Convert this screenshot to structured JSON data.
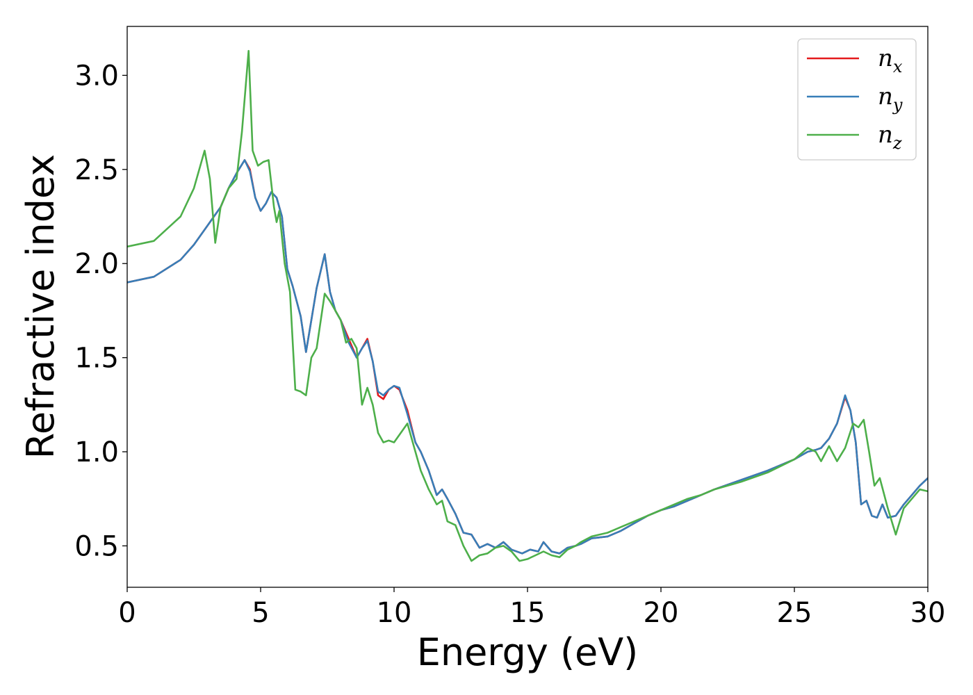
{
  "chart_data": {
    "type": "line",
    "xlabel": "Energy (eV)",
    "ylabel": "Refractive index",
    "xlim": [
      0,
      30
    ],
    "ylim": [
      0.28,
      3.26
    ],
    "xticks": [
      0,
      5,
      10,
      15,
      20,
      25,
      30
    ],
    "xtick_labels": [
      "0",
      "5",
      "10",
      "15",
      "20",
      "25",
      "30"
    ],
    "yticks": [
      0.5,
      1.0,
      1.5,
      2.0,
      2.5,
      3.0
    ],
    "ytick_labels": [
      "0.5",
      "1.0",
      "1.5",
      "2.0",
      "2.5",
      "3.0"
    ],
    "grid": false,
    "legend": "top-right",
    "series": [
      {
        "name": "n_x",
        "legend_base": "n",
        "legend_sub": "x",
        "color": "#e41a1c",
        "x": [
          0,
          1,
          2,
          2.5,
          3,
          3.5,
          3.8,
          4.1,
          4.4,
          4.6,
          4.8,
          5.0,
          5.2,
          5.4,
          5.6,
          5.8,
          6.0,
          6.2,
          6.5,
          6.7,
          6.9,
          7.1,
          7.4,
          7.6,
          7.8,
          8.0,
          8.3,
          8.6,
          8.8,
          9.0,
          9.2,
          9.4,
          9.6,
          9.8,
          10.0,
          10.2,
          10.5,
          10.8,
          11.0,
          11.3,
          11.6,
          11.8,
          12.0,
          12.3,
          12.6,
          12.9,
          13.2,
          13.5,
          13.8,
          14.1,
          14.4,
          14.8,
          15.1,
          15.4,
          15.6,
          15.9,
          16.2,
          16.5,
          16.8,
          17.0,
          17.4,
          18.0,
          18.5,
          19.0,
          19.5,
          20.0,
          20.5,
          21.0,
          21.5,
          22.0,
          23.0,
          24.0,
          25.0,
          25.5,
          25.8,
          26.0,
          26.3,
          26.6,
          26.9,
          27.1,
          27.3,
          27.5,
          27.7,
          27.9,
          28.1,
          28.3,
          28.5,
          28.8,
          29.1,
          29.4,
          29.7,
          30.0
        ],
        "y": [
          1.9,
          1.93,
          2.02,
          2.1,
          2.2,
          2.3,
          2.4,
          2.48,
          2.55,
          2.5,
          2.35,
          2.28,
          2.32,
          2.38,
          2.35,
          2.25,
          1.97,
          1.88,
          1.72,
          1.53,
          1.7,
          1.87,
          2.05,
          1.85,
          1.75,
          1.7,
          1.6,
          1.5,
          1.55,
          1.6,
          1.48,
          1.3,
          1.28,
          1.33,
          1.35,
          1.33,
          1.22,
          1.05,
          1.0,
          0.9,
          0.77,
          0.8,
          0.75,
          0.67,
          0.57,
          0.56,
          0.49,
          0.51,
          0.49,
          0.52,
          0.48,
          0.46,
          0.48,
          0.47,
          0.52,
          0.47,
          0.46,
          0.49,
          0.5,
          0.51,
          0.54,
          0.55,
          0.58,
          0.62,
          0.66,
          0.69,
          0.71,
          0.74,
          0.77,
          0.8,
          0.85,
          0.9,
          0.96,
          1.0,
          1.01,
          1.02,
          1.07,
          1.15,
          1.29,
          1.22,
          1.05,
          0.72,
          0.74,
          0.66,
          0.65,
          0.72,
          0.65,
          0.66,
          0.72,
          0.77,
          0.82,
          0.86
        ]
      },
      {
        "name": "n_y",
        "legend_base": "n",
        "legend_sub": "y",
        "color": "#377eb8",
        "x": [
          0,
          1,
          2,
          2.5,
          3,
          3.5,
          3.8,
          4.1,
          4.4,
          4.6,
          4.8,
          5.0,
          5.2,
          5.4,
          5.6,
          5.8,
          6.0,
          6.2,
          6.5,
          6.7,
          6.9,
          7.1,
          7.4,
          7.6,
          7.8,
          8.0,
          8.3,
          8.6,
          8.8,
          9.0,
          9.2,
          9.4,
          9.6,
          9.8,
          10.0,
          10.2,
          10.5,
          10.8,
          11.0,
          11.3,
          11.6,
          11.8,
          12.0,
          12.3,
          12.6,
          12.9,
          13.2,
          13.5,
          13.8,
          14.1,
          14.4,
          14.8,
          15.1,
          15.4,
          15.6,
          15.9,
          16.2,
          16.5,
          16.8,
          17.0,
          17.4,
          18.0,
          18.5,
          19.0,
          19.5,
          20.0,
          20.5,
          21.0,
          21.5,
          22.0,
          23.0,
          24.0,
          25.0,
          25.5,
          25.8,
          26.0,
          26.3,
          26.6,
          26.9,
          27.1,
          27.3,
          27.5,
          27.7,
          27.9,
          28.1,
          28.3,
          28.5,
          28.8,
          29.1,
          29.4,
          29.7,
          30.0
        ],
        "y": [
          1.9,
          1.93,
          2.02,
          2.1,
          2.2,
          2.3,
          2.4,
          2.48,
          2.55,
          2.49,
          2.35,
          2.28,
          2.32,
          2.38,
          2.35,
          2.25,
          1.97,
          1.88,
          1.72,
          1.53,
          1.7,
          1.87,
          2.05,
          1.85,
          1.75,
          1.7,
          1.58,
          1.5,
          1.55,
          1.59,
          1.48,
          1.32,
          1.3,
          1.33,
          1.35,
          1.34,
          1.2,
          1.05,
          1.0,
          0.9,
          0.77,
          0.8,
          0.75,
          0.67,
          0.57,
          0.56,
          0.49,
          0.51,
          0.49,
          0.52,
          0.48,
          0.46,
          0.48,
          0.47,
          0.52,
          0.47,
          0.46,
          0.49,
          0.5,
          0.51,
          0.54,
          0.55,
          0.58,
          0.62,
          0.66,
          0.69,
          0.71,
          0.74,
          0.77,
          0.8,
          0.85,
          0.9,
          0.96,
          1.0,
          1.01,
          1.02,
          1.07,
          1.15,
          1.3,
          1.22,
          1.05,
          0.72,
          0.74,
          0.66,
          0.65,
          0.72,
          0.65,
          0.66,
          0.72,
          0.77,
          0.82,
          0.86
        ]
      },
      {
        "name": "n_z",
        "legend_base": "n",
        "legend_sub": "z",
        "color": "#4daf4a",
        "x": [
          0,
          1,
          2,
          2.5,
          2.9,
          3.1,
          3.3,
          3.5,
          3.8,
          4.1,
          4.3,
          4.55,
          4.7,
          4.9,
          5.1,
          5.3,
          5.5,
          5.6,
          5.7,
          5.9,
          6.1,
          6.3,
          6.5,
          6.7,
          6.9,
          7.1,
          7.4,
          7.6,
          7.8,
          8.0,
          8.2,
          8.4,
          8.6,
          8.8,
          9.0,
          9.2,
          9.4,
          9.6,
          9.8,
          10.0,
          10.2,
          10.5,
          10.8,
          11.0,
          11.3,
          11.6,
          11.8,
          12.0,
          12.3,
          12.6,
          12.9,
          13.2,
          13.5,
          13.8,
          14.1,
          14.4,
          14.7,
          15.0,
          15.3,
          15.6,
          15.9,
          16.2,
          16.5,
          16.8,
          17.0,
          17.4,
          18.0,
          18.5,
          19.0,
          19.5,
          20.0,
          20.5,
          21.0,
          21.5,
          22.0,
          23.0,
          24.0,
          25.0,
          25.5,
          25.8,
          26.0,
          26.3,
          26.6,
          26.9,
          27.2,
          27.4,
          27.6,
          27.8,
          28.0,
          28.2,
          28.5,
          28.8,
          29.1,
          29.4,
          29.7,
          30.0
        ],
        "y": [
          2.09,
          2.12,
          2.25,
          2.4,
          2.6,
          2.45,
          2.11,
          2.3,
          2.4,
          2.45,
          2.7,
          3.13,
          2.6,
          2.52,
          2.54,
          2.55,
          2.3,
          2.22,
          2.28,
          2.0,
          1.85,
          1.33,
          1.32,
          1.3,
          1.5,
          1.55,
          1.84,
          1.8,
          1.75,
          1.7,
          1.58,
          1.6,
          1.55,
          1.25,
          1.34,
          1.25,
          1.1,
          1.05,
          1.06,
          1.05,
          1.09,
          1.15,
          1.0,
          0.9,
          0.8,
          0.72,
          0.74,
          0.63,
          0.61,
          0.5,
          0.42,
          0.45,
          0.46,
          0.49,
          0.5,
          0.47,
          0.42,
          0.43,
          0.45,
          0.47,
          0.45,
          0.44,
          0.48,
          0.5,
          0.52,
          0.55,
          0.57,
          0.6,
          0.63,
          0.66,
          0.69,
          0.72,
          0.75,
          0.77,
          0.8,
          0.84,
          0.89,
          0.96,
          1.02,
          1.0,
          0.95,
          1.03,
          0.95,
          1.02,
          1.15,
          1.13,
          1.17,
          1.0,
          0.82,
          0.86,
          0.7,
          0.56,
          0.7,
          0.75,
          0.8,
          0.79
        ]
      }
    ]
  }
}
